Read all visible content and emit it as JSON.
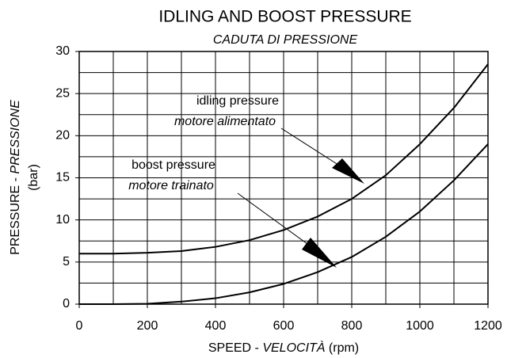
{
  "chart_data": {
    "type": "line",
    "title": "IDLING AND BOOST PRESSURE",
    "subtitle": "CADUTA DI PRESSIONE",
    "xlabel": {
      "text": "SPEED -",
      "italic": "VELOCITÀ",
      "unit": "(rpm)"
    },
    "ylabel": {
      "text": "PRESSURE -",
      "italic": "PRESSIONE",
      "unit": "(bar)"
    },
    "x": [
      0,
      100,
      200,
      300,
      400,
      500,
      600,
      700,
      800,
      900,
      1000,
      1100,
      1200
    ],
    "series": [
      {
        "color": "#000000",
        "values": [
          6.0,
          6.0,
          6.1,
          6.3,
          6.8,
          7.6,
          8.8,
          10.4,
          12.5,
          15.3,
          19.0,
          23.3,
          28.5
        ]
      },
      {
        "color": "#000000",
        "values": [
          0,
          0,
          0.05,
          0.3,
          0.7,
          1.4,
          2.4,
          3.8,
          5.6,
          8.0,
          11.0,
          14.7,
          19.0
        ]
      }
    ],
    "annotations": [
      {
        "text": "idling pressure",
        "italic": "motore alimentato"
      },
      {
        "text": "boost pressure",
        "italic": "motore trainato"
      }
    ],
    "xlim": [
      0,
      1200
    ],
    "xticks": [
      0,
      200,
      400,
      600,
      800,
      1000,
      1200
    ],
    "ylim": [
      0,
      30
    ],
    "yticks": [
      0,
      5,
      10,
      15,
      20,
      25,
      30
    ],
    "xgrid": [
      100,
      200,
      300,
      400,
      500,
      600,
      700,
      800,
      900,
      1000,
      1100
    ],
    "ygrid": [
      2.5,
      5,
      7.5,
      10,
      12.5,
      15,
      17.5,
      20,
      22.5,
      25,
      27.5
    ],
    "grid": true
  }
}
